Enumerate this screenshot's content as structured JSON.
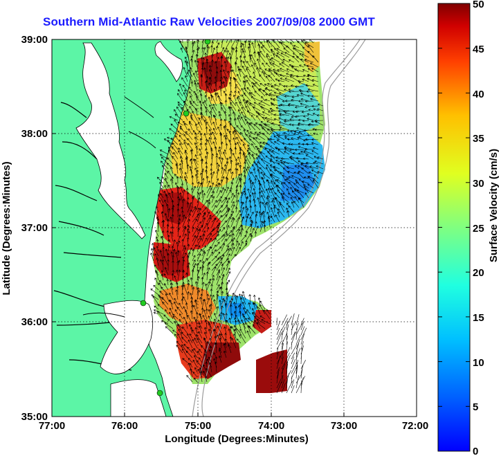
{
  "title": "Southern Mid-Atlantic Raw Velocities 2007/09/08 2000 GMT",
  "map": {
    "xlabel": "Longitude (Degrees:Minutes)",
    "ylabel": "Latitude (Degrees:Minutes)",
    "lon_ticks": [
      "77:00",
      "76:00",
      "75:00",
      "74:00",
      "73:00",
      "72:00"
    ],
    "lat_ticks": [
      "39:00",
      "38:00",
      "37:00",
      "36:00",
      "35:00"
    ],
    "lon_range": [
      -77,
      -72
    ],
    "lat_range": [
      35,
      39
    ],
    "grid": "dotted",
    "land_color": "#5cf5a6",
    "coast_color": "#000000",
    "bathymetry_color": "#9a9a9a",
    "radar_station_color": "#22cc22",
    "vector_color": "#000000"
  },
  "colorbar": {
    "label": "Surface Velocity (cm/s)",
    "ticks": [
      "50",
      "45",
      "40",
      "35",
      "30",
      "25",
      "20",
      "15",
      "10",
      "5",
      "0"
    ],
    "range": [
      0,
      50
    ],
    "colormap": "jet"
  }
}
